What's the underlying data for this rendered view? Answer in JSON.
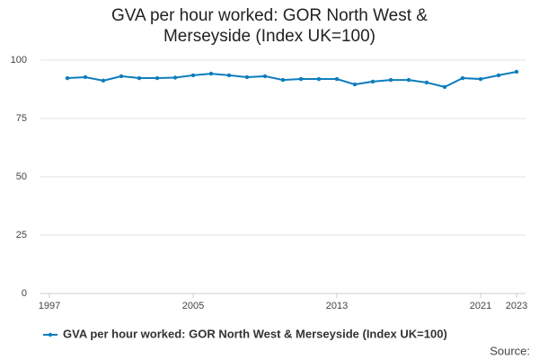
{
  "chart_data": {
    "type": "line",
    "title": "GVA per hour worked: GOR North West & Merseyside (Index UK=100)",
    "x": [
      1998,
      1999,
      2000,
      2001,
      2002,
      2003,
      2004,
      2005,
      2006,
      2007,
      2008,
      2009,
      2010,
      2011,
      2012,
      2013,
      2014,
      2015,
      2016,
      2017,
      2018,
      2019,
      2020,
      2021,
      2022,
      2023
    ],
    "series": [
      {
        "name": "GVA per hour worked: GOR North West & Merseyside (Index UK=100)",
        "color": "#0e7dbd",
        "values": [
          92.3,
          92.7,
          91.2,
          93.1,
          92.3,
          92.3,
          92.5,
          93.5,
          94.2,
          93.5,
          92.7,
          93.1,
          91.5,
          91.9,
          91.9,
          91.9,
          89.6,
          90.8,
          91.5,
          91.5,
          90.4,
          88.5,
          92.3,
          91.9,
          93.5,
          95.0
        ]
      }
    ],
    "xlim": [
      1996.5,
      2023.5
    ],
    "xticks": [
      1997,
      2005,
      2013,
      2021,
      2023
    ],
    "ylim": [
      0,
      100
    ],
    "yticks": [
      0,
      25,
      50,
      75,
      100
    ],
    "grid": true,
    "source": "Source:"
  }
}
